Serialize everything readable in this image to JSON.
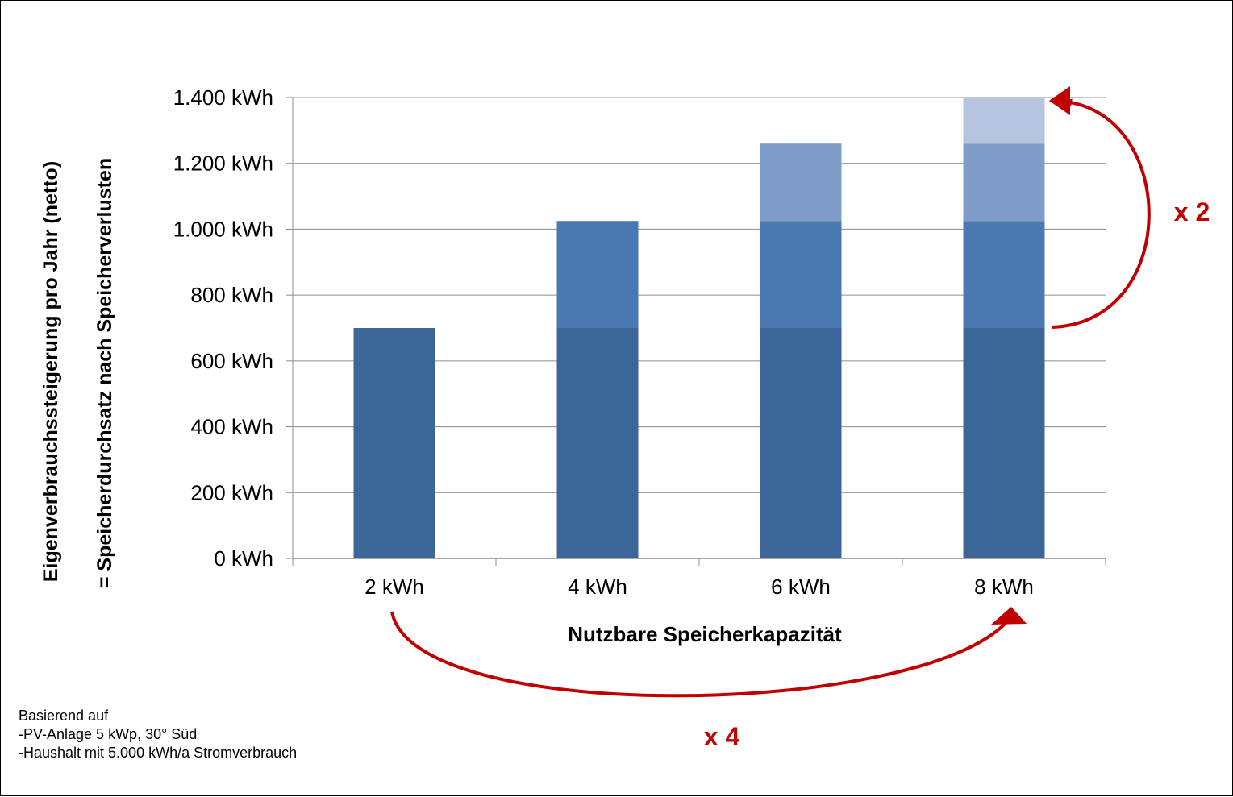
{
  "chart_data": {
    "type": "bar",
    "stacked": true,
    "categories": [
      "2 kWh",
      "4 kWh",
      "6 kWh",
      "8 kWh"
    ],
    "series": [
      {
        "values": [
          700,
          700,
          700,
          700
        ],
        "color": "#3d6698"
      },
      {
        "values": [
          0,
          325,
          325,
          325
        ],
        "color": "#4a78b0"
      },
      {
        "values": [
          0,
          0,
          235,
          235
        ],
        "color": "#7f9dc8"
      },
      {
        "values": [
          0,
          0,
          0,
          140
        ],
        "color": "#b5c5df"
      }
    ],
    "xlabel": "Nutzbare Speicherkapazität",
    "ylabel_line1": "Eigenverbrauchssteigerung pro Jahr (netto)",
    "ylabel_line2": "= Speicherdurchsatz nach Speicherverlusten",
    "ylim": [
      0,
      1400
    ],
    "yticks": [
      0,
      200,
      400,
      600,
      800,
      1000,
      1200,
      1400
    ],
    "ytick_labels": [
      "0 kWh",
      "200 kWh",
      "400 kWh",
      "600 kWh",
      "800 kWh",
      "1.000 kWh",
      "1.200 kWh",
      "1.400 kWh"
    ],
    "grid": true,
    "annotations": {
      "factor_right": "x 2",
      "factor_bottom": "x 4",
      "arrow_color": "#c00000"
    }
  },
  "note_lines": [
    "Basierend auf",
    "-PV-Anlage 5 kWp, 30° Süd",
    "-Haushalt mit 5.000 kWh/a Stromverbrauch"
  ]
}
